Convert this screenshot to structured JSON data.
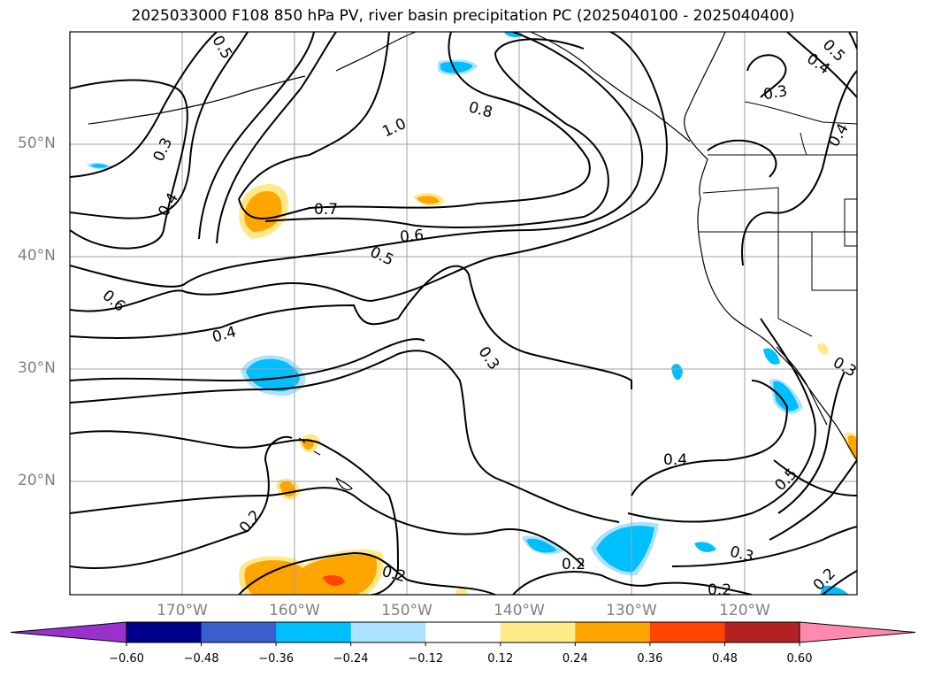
{
  "title": "2025033000 F108 850 hPa PV, river basin precipitation PC (2025040100 - 2025040400)",
  "lat_labels": [
    "50°N",
    "40°N",
    "30°N",
    "20°N"
  ],
  "lon_labels": [
    "170°W",
    "160°W",
    "150°W",
    "140°W",
    "130°W",
    "120°W"
  ],
  "contour_labels": [
    "0.5",
    "0.3",
    "0.4",
    "1.0",
    "0.8",
    "0.7",
    "0.6",
    "0.5",
    "0.6",
    "0.4",
    "0.3",
    "0.2",
    "0.2",
    "0.2",
    "0.4",
    "0.3",
    "0.2",
    "0.5",
    "0.2",
    "0.3",
    "0.4",
    "0.5",
    "0.3",
    "0.4"
  ],
  "colorbar": {
    "ticks": [
      "−0.60",
      "−0.48",
      "−0.36",
      "−0.24",
      "−0.12",
      "0.12",
      "0.24",
      "0.36",
      "0.48",
      "0.60"
    ],
    "colors": [
      "#9932CC",
      "#00008B",
      "#3A5FCD",
      "#00BFFF",
      "#ADE2FF",
      "#FFFFFF",
      "#FFEB8A",
      "#FFA500",
      "#FF4500",
      "#B22222",
      "#FF8AAE"
    ]
  },
  "colors": {
    "pos_light": "#FFE88A",
    "pos_mid": "#FFA500",
    "pos_strong": "#FF4500",
    "neg_light": "#ADE2FF",
    "neg_mid": "#00BFFF",
    "grid": "#a0a0a0"
  }
}
